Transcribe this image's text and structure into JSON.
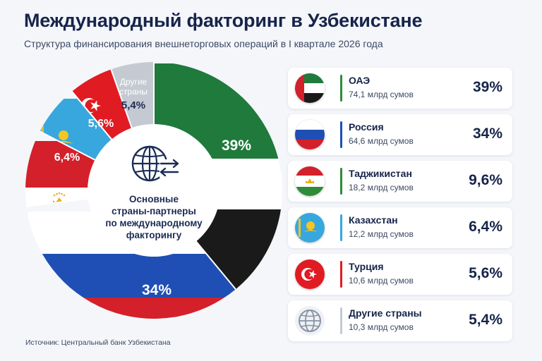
{
  "title": "Международный факторинг в Узбекистане",
  "subtitle": "Структура финансирования внешнеторговых операций в I квартале 2026 года",
  "source": "Источник: Центральный банк Узбекистана",
  "center_label": [
    "Основные",
    "страны-партнеры",
    "по международному",
    "факторингу"
  ],
  "colors": {
    "uae_green": "#1f7a3c",
    "uae_red": "#d3202a",
    "russia_blue": "#1f4fb4",
    "tajik_green": "#2e8b3a",
    "kaz_blue": "#37a7de",
    "kaz_gold": "#f3c623",
    "turkey_red": "#e11b22",
    "other_gray": "#c4c9d2",
    "divider_green": "#2e8b3a"
  },
  "chart_data": {
    "type": "pie",
    "style": "donut",
    "title": "Международный факторинг в Узбекистане",
    "subtitle": "Структура финансирования внешнеторговых операций в I квартале 2026 года",
    "unit": "%",
    "slices": [
      {
        "name": "ОАЭ",
        "value": 39,
        "label": "39%",
        "amount": "74,1 млрд сумов",
        "flag": "uae-flag"
      },
      {
        "name": "Россия",
        "value": 34,
        "label": "34%",
        "amount": "64,6 млрд сумов",
        "flag": "russia-flag"
      },
      {
        "name": "Таджикистан",
        "value": 9.6,
        "label": "9,6%",
        "amount": "18,2 млрд сумов",
        "flag": "tajikistan-flag"
      },
      {
        "name": "Казахстан",
        "value": 6.4,
        "label": "6,4%",
        "amount": "12,2 млрд сумов",
        "flag": "kazakhstan-flag"
      },
      {
        "name": "Турция",
        "value": 5.6,
        "label": "5,6%",
        "amount": "10,6 млрд сумов",
        "flag": "turkey-flag"
      },
      {
        "name": "Другие страны",
        "value": 5.4,
        "label": "5,4%",
        "amount": "10,3 млрд сумов",
        "flag": "globe-icon"
      }
    ],
    "legend_position": "right"
  }
}
